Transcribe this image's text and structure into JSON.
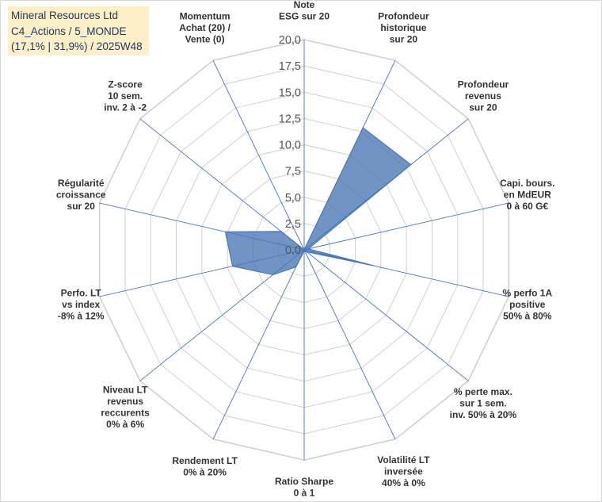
{
  "info_box": {
    "line1": "Mineral Resources Ltd",
    "line2": "C4_Actions / 5_MONDE",
    "line3": "(17,1% | 31,9%) / 2025W48"
  },
  "colors": {
    "fill": "#4a76b4",
    "stroke": "#4a76b4",
    "grid": "#d0d0d0",
    "spoke": "#4472c4",
    "info_bg": "#fdefc7",
    "info_text": "#1f3864"
  },
  "chart_data": {
    "type": "radar",
    "title": "",
    "range": [
      0,
      20
    ],
    "ticks": [
      "0,0",
      "2,5",
      "5,0",
      "7,5",
      "10,0",
      "12,5",
      "15,0",
      "17,5",
      "20,0"
    ],
    "tick_values": [
      0,
      2.5,
      5,
      7.5,
      10,
      12.5,
      15,
      17.5,
      20
    ],
    "axes": [
      {
        "lines": [
          "Note",
          "ESG sur 20"
        ],
        "value": 0
      },
      {
        "lines": [
          "Profondeur",
          "historique",
          "sur 20"
        ],
        "value": 12.9
      },
      {
        "lines": [
          "Profondeur",
          "revenus",
          "sur 20"
        ],
        "value": 13.0
      },
      {
        "lines": [
          "Capi. bours.",
          "en MdEUR",
          "0 à 60 G€"
        ],
        "value": 0.4
      },
      {
        "lines": [
          "% perfo 1A",
          "positive",
          "50% à 80%"
        ],
        "value": 6.8
      },
      {
        "lines": [
          "% perte max.",
          "sur 1 sem.",
          "inv. 50% à 20%"
        ],
        "value": 0.3
      },
      {
        "lines": [
          "Volatilité LT",
          "inversée",
          "40% à 0%"
        ],
        "value": 0.2
      },
      {
        "lines": [
          "Ratio Sharpe",
          "0 à 1"
        ],
        "value": 0.1
      },
      {
        "lines": [
          "Rendement LT",
          "0% à 20%"
        ],
        "value": 1.8
      },
      {
        "lines": [
          "Niveau LT",
          "revenus",
          "reccurents",
          "0% à 6%"
        ],
        "value": 3.8
      },
      {
        "lines": [
          "Perfo. LT",
          "vs index",
          "-8% à 12%"
        ],
        "value": 7.0
      },
      {
        "lines": [
          "Régularité",
          "croissance",
          "sur 20"
        ],
        "value": 7.7
      },
      {
        "lines": [
          "Z-score",
          "10 sem.",
          "inv. 2 à -2"
        ],
        "value": 2.8
      },
      {
        "lines": [
          "Momentum",
          "Achat (20) /",
          "Vente (0)"
        ],
        "value": 0.0
      }
    ],
    "series": [
      {
        "name": "Mineral Resources Ltd",
        "values": [
          0,
          12.9,
          13.0,
          0.4,
          6.8,
          0.3,
          0.2,
          0.1,
          1.8,
          3.8,
          7.0,
          7.7,
          2.8,
          0.0
        ]
      }
    ]
  }
}
